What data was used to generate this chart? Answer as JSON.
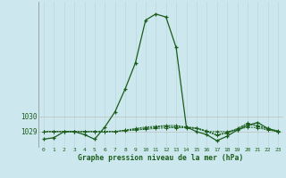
{
  "title": "Graphe pression niveau de la mer (hPa)",
  "background_color": "#cce8ee",
  "line_color": "#1a5c1a",
  "grid_color_v": "#b8d8de",
  "grid_color_h": "#c0c0c0",
  "x_ticks": [
    0,
    1,
    2,
    3,
    4,
    5,
    6,
    7,
    8,
    9,
    10,
    11,
    12,
    13,
    14,
    15,
    16,
    17,
    18,
    19,
    20,
    21,
    22,
    23
  ],
  "y_ticks": [
    1029,
    1030
  ],
  "xlim": [
    -0.5,
    23.5
  ],
  "ylim": [
    1028.0,
    1037.5
  ],
  "series1_x": [
    0,
    1,
    2,
    3,
    4,
    5,
    6,
    7,
    8,
    9,
    10,
    11,
    12,
    13,
    14,
    15,
    16,
    17,
    18,
    19,
    20,
    21,
    22,
    23
  ],
  "series1_y": [
    1028.5,
    1028.6,
    1029.0,
    1029.0,
    1028.8,
    1028.5,
    1029.3,
    1030.3,
    1031.8,
    1033.5,
    1036.3,
    1036.7,
    1036.5,
    1034.5,
    1029.3,
    1029.0,
    1028.8,
    1028.4,
    1028.7,
    1029.1,
    1029.4,
    1029.6,
    1029.2,
    1029.0
  ],
  "series2_x": [
    0,
    1,
    2,
    3,
    4,
    5,
    6,
    7,
    8,
    9,
    10,
    11,
    12,
    13,
    14,
    15,
    16,
    17,
    18,
    19,
    20,
    21,
    22,
    23
  ],
  "series2_y": [
    1029.0,
    1029.0,
    1029.0,
    1029.0,
    1029.0,
    1029.0,
    1029.0,
    1029.0,
    1029.05,
    1029.1,
    1029.15,
    1029.2,
    1029.25,
    1029.25,
    1029.25,
    1029.2,
    1029.0,
    1029.0,
    1029.0,
    1029.1,
    1029.3,
    1029.25,
    1029.1,
    1029.0
  ],
  "series3_x": [
    0,
    1,
    2,
    3,
    4,
    5,
    6,
    7,
    8,
    9,
    10,
    11,
    12,
    13,
    14,
    15,
    16,
    17,
    18,
    19,
    20,
    21,
    22,
    23
  ],
  "series3_y": [
    1029.0,
    1029.0,
    1029.0,
    1029.0,
    1029.0,
    1029.0,
    1029.0,
    1029.0,
    1029.1,
    1029.15,
    1029.2,
    1029.3,
    1029.35,
    1029.3,
    1029.3,
    1029.25,
    1029.05,
    1028.8,
    1028.95,
    1029.2,
    1029.55,
    1029.4,
    1029.2,
    1029.05
  ],
  "series4_x": [
    0,
    1,
    2,
    3,
    4,
    5,
    6,
    7,
    8,
    9,
    10,
    11,
    12,
    13,
    14,
    15,
    16,
    17,
    18,
    19,
    20,
    21,
    22,
    23
  ],
  "series4_y": [
    1029.0,
    1029.0,
    1029.0,
    1029.0,
    1029.0,
    1029.0,
    1029.0,
    1029.0,
    1029.1,
    1029.2,
    1029.3,
    1029.35,
    1029.4,
    1029.4,
    1029.3,
    1029.2,
    1029.0,
    1028.75,
    1028.9,
    1029.15,
    1029.5,
    1029.35,
    1029.15,
    1029.0
  ]
}
